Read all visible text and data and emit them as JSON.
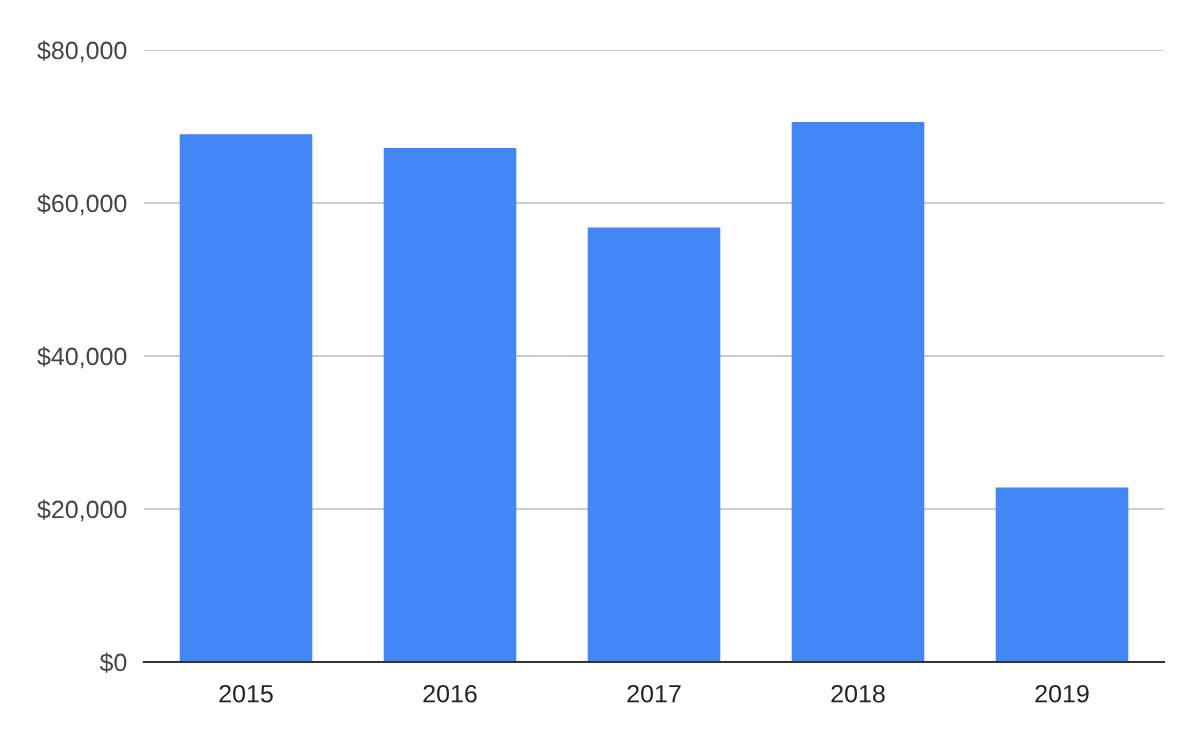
{
  "chart_data": {
    "type": "bar",
    "categories": [
      "2015",
      "2016",
      "2017",
      "2018",
      "2019"
    ],
    "values": [
      69000,
      67200,
      56800,
      70600,
      22800
    ],
    "color": "#4285f4",
    "ylim": [
      0,
      80000
    ],
    "yticks": [
      {
        "value": 0,
        "label": "$0"
      },
      {
        "value": 20000,
        "label": "$20,000"
      },
      {
        "value": 40000,
        "label": "$40,000"
      },
      {
        "value": 60000,
        "label": "$60,000"
      },
      {
        "value": 80000,
        "label": "$80,000"
      }
    ],
    "grid": "y",
    "legend": false
  }
}
